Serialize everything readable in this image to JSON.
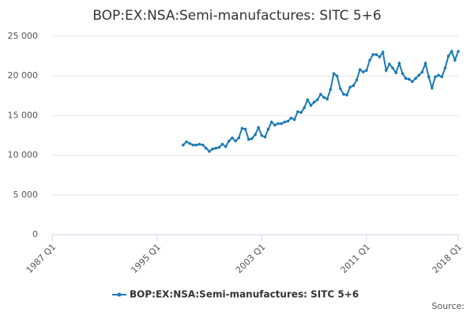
{
  "chart_data": {
    "type": "line",
    "title": "BOP:EX:NSA:Semi-manufactures: SITC 5+6",
    "source": "Source:",
    "x": [
      "1997 Q1",
      "1997 Q2",
      "1997 Q3",
      "1997 Q4",
      "1998 Q1",
      "1998 Q2",
      "1998 Q3",
      "1998 Q4",
      "1999 Q1",
      "1999 Q2",
      "1999 Q3",
      "1999 Q4",
      "2000 Q1",
      "2000 Q2",
      "2000 Q3",
      "2000 Q4",
      "2001 Q1",
      "2001 Q2",
      "2001 Q3",
      "2001 Q4",
      "2002 Q1",
      "2002 Q2",
      "2002 Q3",
      "2002 Q4",
      "2003 Q1",
      "2003 Q2",
      "2003 Q3",
      "2003 Q4",
      "2004 Q1",
      "2004 Q2",
      "2004 Q3",
      "2004 Q4",
      "2005 Q1",
      "2005 Q2",
      "2005 Q3",
      "2005 Q4",
      "2006 Q1",
      "2006 Q2",
      "2006 Q3",
      "2006 Q4",
      "2007 Q1",
      "2007 Q2",
      "2007 Q3",
      "2007 Q4",
      "2008 Q1",
      "2008 Q2",
      "2008 Q3",
      "2008 Q4",
      "2009 Q1",
      "2009 Q2",
      "2009 Q3",
      "2009 Q4",
      "2010 Q1",
      "2010 Q2",
      "2010 Q3",
      "2010 Q4",
      "2011 Q1",
      "2011 Q2",
      "2011 Q3",
      "2011 Q4",
      "2012 Q1",
      "2012 Q2",
      "2012 Q3",
      "2012 Q4",
      "2013 Q1",
      "2013 Q2",
      "2013 Q3",
      "2013 Q4",
      "2014 Q1",
      "2014 Q2",
      "2014 Q3",
      "2014 Q4",
      "2015 Q1",
      "2015 Q2",
      "2015 Q3",
      "2015 Q4",
      "2016 Q1",
      "2016 Q2",
      "2016 Q3",
      "2016 Q4",
      "2017 Q1",
      "2017 Q2",
      "2017 Q3",
      "2017 Q4",
      "2018 Q1"
    ],
    "series": [
      {
        "name": "BOP:EX:NSA:Semi-manufactures: SITC 5+6",
        "color": "#1a7ab5",
        "values": [
          11300,
          11700,
          11500,
          11300,
          11300,
          11400,
          11300,
          10900,
          10500,
          10800,
          10900,
          11000,
          11400,
          11100,
          11800,
          12200,
          11800,
          12200,
          13400,
          13300,
          12000,
          12100,
          12600,
          13500,
          12500,
          12300,
          13300,
          14200,
          13800,
          14000,
          14000,
          14200,
          14300,
          14700,
          14500,
          15500,
          15400,
          16000,
          17000,
          16300,
          16700,
          17000,
          17700,
          17300,
          17100,
          18300,
          20300,
          20000,
          18400,
          17700,
          17600,
          18600,
          18800,
          19500,
          20800,
          20500,
          20700,
          22000,
          22700,
          22700,
          22400,
          23000,
          20700,
          21500,
          21000,
          20400,
          21600,
          20300,
          19700,
          19600,
          19300,
          19700,
          20100,
          20500,
          21600,
          19900,
          18500,
          19900,
          20100,
          19900,
          21000,
          22500,
          23100,
          22000,
          23100
        ]
      }
    ],
    "xlim": [
      "1987 Q1",
      "2018 Q1"
    ],
    "xticks": [
      "1987 Q1",
      "1995 Q1",
      "2003 Q1",
      "2011 Q1",
      "2018 Q1"
    ],
    "ylim": [
      0,
      25000
    ],
    "yticks": [
      0,
      {
        "value": 5000,
        "label": "5 000"
      },
      {
        "value": 10000,
        "label": "10 000"
      },
      {
        "value": 15000,
        "label": "15 000"
      },
      {
        "value": 20000,
        "label": "20 000"
      },
      {
        "value": 25000,
        "label": "25 000"
      }
    ],
    "grid": true
  }
}
